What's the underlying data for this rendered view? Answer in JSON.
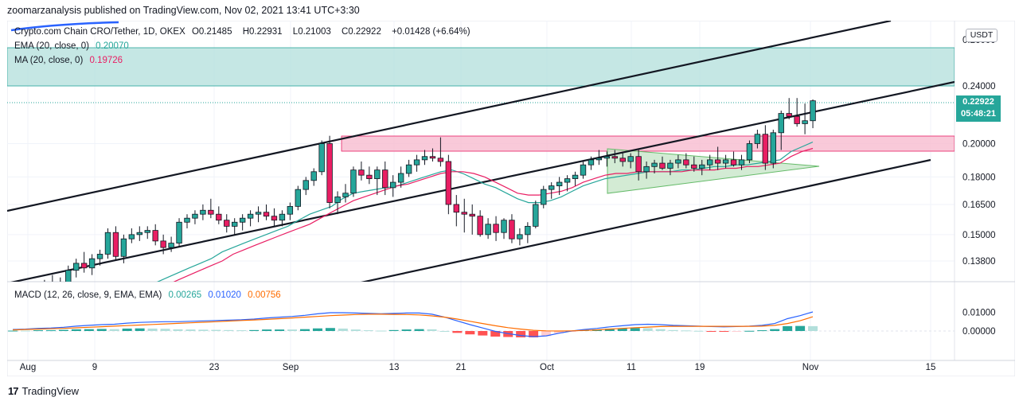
{
  "publisher": "zoomarzanalysis published on TradingView.com, Nov 02, 2021 13:41 UTC+3:30",
  "legend": {
    "symbol": "Crypto.com Chain CRO/Tether, 1D, OKEX",
    "o_label": "O",
    "open": "0.21485",
    "h_label": "H",
    "high": "0.22931",
    "l_label": "L",
    "low": "0.21003",
    "c_label": "C",
    "close": "0.22922",
    "change": "+0.01428 (+6.64%)",
    "ema_label": "EMA (20, close, 0)",
    "ema_value": "0.20070",
    "ma_label": "MA (20, close, 0)",
    "ma_value": "0.19726",
    "macd_label": "MACD (12, 26, close, 9, EMA, EMA)",
    "macd_hist": "0.00265",
    "macd_line": "0.01020",
    "macd_signal": "0.00756"
  },
  "currency_button": "USDT",
  "price_tag": {
    "price": "0.22922",
    "countdown": "05:48:21"
  },
  "footer": {
    "brand": "TradingView",
    "logo_text": "17"
  },
  "colors": {
    "up": "#26a69a",
    "down": "#ef5350",
    "candle_up_fill": "#26a69a",
    "candle_down_fill": "#e91e63",
    "ema": "#26a69a",
    "ma": "#e91e63",
    "macd_line": "#2962ff",
    "signal_line": "#ff6d00",
    "resistance_zone": "#b2dfdb",
    "support_zone": "#f8bbd0",
    "triangle": "#a5d6a7"
  },
  "chart_data": {
    "type": "candlestick",
    "x_ticks": [
      "Aug",
      "9",
      "23",
      "Sep",
      "13",
      "21",
      "Oct",
      "11",
      "19",
      "Nov",
      "15"
    ],
    "y_ticks": [
      "0.24000",
      "0.20000",
      "0.18000",
      "0.16500",
      "0.15000",
      "0.13800"
    ],
    "y_clipped_top": "0.26000",
    "macd_y_ticks": [
      "0.01000",
      "0.00000"
    ],
    "ohlc": [
      [
        0.121,
        0.125,
        0.118,
        0.123
      ],
      [
        0.123,
        0.128,
        0.12,
        0.126
      ],
      [
        0.126,
        0.13,
        0.123,
        0.128
      ],
      [
        0.128,
        0.132,
        0.124,
        0.125
      ],
      [
        0.125,
        0.131,
        0.122,
        0.129
      ],
      [
        0.129,
        0.136,
        0.127,
        0.134
      ],
      [
        0.134,
        0.139,
        0.131,
        0.137
      ],
      [
        0.137,
        0.142,
        0.133,
        0.135
      ],
      [
        0.135,
        0.141,
        0.132,
        0.139
      ],
      [
        0.139,
        0.143,
        0.136,
        0.141
      ],
      [
        0.141,
        0.153,
        0.139,
        0.151
      ],
      [
        0.151,
        0.154,
        0.138,
        0.14
      ],
      [
        0.14,
        0.15,
        0.137,
        0.148
      ],
      [
        0.148,
        0.153,
        0.146,
        0.15
      ],
      [
        0.15,
        0.154,
        0.147,
        0.151
      ],
      [
        0.151,
        0.154,
        0.148,
        0.152
      ],
      [
        0.152,
        0.155,
        0.145,
        0.147
      ],
      [
        0.147,
        0.15,
        0.141,
        0.144
      ],
      [
        0.144,
        0.149,
        0.142,
        0.146
      ],
      [
        0.146,
        0.158,
        0.144,
        0.156
      ],
      [
        0.156,
        0.16,
        0.153,
        0.158
      ],
      [
        0.158,
        0.162,
        0.155,
        0.16
      ],
      [
        0.16,
        0.165,
        0.157,
        0.162
      ],
      [
        0.162,
        0.168,
        0.158,
        0.16
      ],
      [
        0.16,
        0.164,
        0.155,
        0.157
      ],
      [
        0.157,
        0.16,
        0.151,
        0.154
      ],
      [
        0.154,
        0.158,
        0.15,
        0.156
      ],
      [
        0.156,
        0.16,
        0.152,
        0.158
      ],
      [
        0.158,
        0.162,
        0.154,
        0.16
      ],
      [
        0.16,
        0.164,
        0.156,
        0.161
      ],
      [
        0.161,
        0.165,
        0.157,
        0.159
      ],
      [
        0.159,
        0.163,
        0.154,
        0.157
      ],
      [
        0.157,
        0.162,
        0.154,
        0.16
      ],
      [
        0.16,
        0.166,
        0.157,
        0.164
      ],
      [
        0.164,
        0.175,
        0.162,
        0.173
      ],
      [
        0.173,
        0.18,
        0.17,
        0.178
      ],
      [
        0.178,
        0.185,
        0.175,
        0.183
      ],
      [
        0.183,
        0.202,
        0.181,
        0.2
      ],
      [
        0.2,
        0.205,
        0.163,
        0.166
      ],
      [
        0.166,
        0.172,
        0.16,
        0.169
      ],
      [
        0.169,
        0.176,
        0.166,
        0.171
      ],
      [
        0.171,
        0.186,
        0.169,
        0.184
      ],
      [
        0.184,
        0.189,
        0.178,
        0.181
      ],
      [
        0.181,
        0.186,
        0.176,
        0.179
      ],
      [
        0.179,
        0.186,
        0.17,
        0.184
      ],
      [
        0.184,
        0.189,
        0.17,
        0.174
      ],
      [
        0.174,
        0.181,
        0.169,
        0.177
      ],
      [
        0.177,
        0.186,
        0.174,
        0.182
      ],
      [
        0.182,
        0.19,
        0.18,
        0.187
      ],
      [
        0.187,
        0.193,
        0.183,
        0.19
      ],
      [
        0.19,
        0.196,
        0.187,
        0.192
      ],
      [
        0.192,
        0.197,
        0.189,
        0.191
      ],
      [
        0.191,
        0.204,
        0.186,
        0.189
      ],
      [
        0.189,
        0.193,
        0.16,
        0.165
      ],
      [
        0.165,
        0.17,
        0.154,
        0.161
      ],
      [
        0.161,
        0.168,
        0.151,
        0.16
      ],
      [
        0.16,
        0.165,
        0.15,
        0.159
      ],
      [
        0.159,
        0.162,
        0.149,
        0.15
      ],
      [
        0.15,
        0.158,
        0.148,
        0.155
      ],
      [
        0.155,
        0.159,
        0.147,
        0.151
      ],
      [
        0.151,
        0.158,
        0.148,
        0.157
      ],
      [
        0.157,
        0.16,
        0.146,
        0.148
      ],
      [
        0.148,
        0.153,
        0.145,
        0.15
      ],
      [
        0.15,
        0.156,
        0.146,
        0.154
      ],
      [
        0.154,
        0.167,
        0.153,
        0.165
      ],
      [
        0.165,
        0.175,
        0.163,
        0.173
      ],
      [
        0.173,
        0.177,
        0.168,
        0.175
      ],
      [
        0.175,
        0.18,
        0.17,
        0.177
      ],
      [
        0.177,
        0.181,
        0.172,
        0.179
      ],
      [
        0.179,
        0.183,
        0.175,
        0.181
      ],
      [
        0.181,
        0.189,
        0.179,
        0.187
      ],
      [
        0.187,
        0.192,
        0.184,
        0.19
      ],
      [
        0.19,
        0.196,
        0.187,
        0.191
      ],
      [
        0.191,
        0.195,
        0.186,
        0.192
      ],
      [
        0.192,
        0.196,
        0.188,
        0.191
      ],
      [
        0.191,
        0.195,
        0.186,
        0.189
      ],
      [
        0.189,
        0.194,
        0.185,
        0.192
      ],
      [
        0.192,
        0.196,
        0.178,
        0.183
      ],
      [
        0.183,
        0.189,
        0.179,
        0.186
      ],
      [
        0.186,
        0.19,
        0.182,
        0.188
      ],
      [
        0.188,
        0.192,
        0.184,
        0.185
      ],
      [
        0.185,
        0.19,
        0.181,
        0.188
      ],
      [
        0.188,
        0.193,
        0.185,
        0.19
      ],
      [
        0.19,
        0.194,
        0.185,
        0.187
      ],
      [
        0.187,
        0.192,
        0.183,
        0.185
      ],
      [
        0.185,
        0.19,
        0.181,
        0.187
      ],
      [
        0.187,
        0.193,
        0.184,
        0.19
      ],
      [
        0.19,
        0.198,
        0.184,
        0.188
      ],
      [
        0.188,
        0.193,
        0.185,
        0.19
      ],
      [
        0.19,
        0.195,
        0.186,
        0.187
      ],
      [
        0.187,
        0.193,
        0.184,
        0.19
      ],
      [
        0.19,
        0.202,
        0.188,
        0.2
      ],
      [
        0.2,
        0.209,
        0.197,
        0.206
      ],
      [
        0.206,
        0.212,
        0.184,
        0.188
      ],
      [
        0.188,
        0.209,
        0.185,
        0.207
      ],
      [
        0.207,
        0.222,
        0.196,
        0.22
      ],
      [
        0.22,
        0.231,
        0.216,
        0.218
      ],
      [
        0.218,
        0.231,
        0.211,
        0.213
      ],
      [
        0.213,
        0.227,
        0.206,
        0.215
      ],
      [
        0.215,
        0.23,
        0.21,
        0.229
      ]
    ],
    "ema": [
      0.125,
      0.124,
      0.127,
      0.129,
      0.131,
      0.133,
      0.135,
      0.137,
      0.139,
      0.142,
      0.144,
      0.146,
      0.148,
      0.15,
      0.152,
      0.154,
      0.157,
      0.16,
      0.162,
      0.164,
      0.168,
      0.171,
      0.172,
      0.173,
      0.174,
      0.175,
      0.177,
      0.179,
      0.181,
      0.183,
      0.184,
      0.182,
      0.179,
      0.176,
      0.174,
      0.171,
      0.168,
      0.166,
      0.166,
      0.167,
      0.169,
      0.172,
      0.175,
      0.177,
      0.179,
      0.18,
      0.181,
      0.182,
      0.183,
      0.183,
      0.183,
      0.184,
      0.184,
      0.185,
      0.186,
      0.186,
      0.187,
      0.187,
      0.188,
      0.189,
      0.19,
      0.195,
      0.198,
      0.201
    ],
    "ma": [
      0.12,
      0.122,
      0.124,
      0.126,
      0.128,
      0.13,
      0.132,
      0.134,
      0.136,
      0.138,
      0.141,
      0.143,
      0.145,
      0.147,
      0.149,
      0.151,
      0.153,
      0.155,
      0.158,
      0.161,
      0.164,
      0.167,
      0.169,
      0.171,
      0.173,
      0.175,
      0.176,
      0.178,
      0.18,
      0.182,
      0.183,
      0.183,
      0.182,
      0.18,
      0.177,
      0.174,
      0.171,
      0.17,
      0.17,
      0.171,
      0.172,
      0.174,
      0.177,
      0.179,
      0.181,
      0.182,
      0.182,
      0.183,
      0.183,
      0.183,
      0.183,
      0.183,
      0.184,
      0.184,
      0.184,
      0.185,
      0.185,
      0.186,
      0.186,
      0.187,
      0.188,
      0.192,
      0.195,
      0.197
    ],
    "macd": [
      0.0008,
      0.001,
      0.0014,
      0.0016,
      0.002,
      0.0026,
      0.003,
      0.0034,
      0.0036,
      0.0042,
      0.0046,
      0.0048,
      0.005,
      0.005,
      0.0052,
      0.0054,
      0.0056,
      0.0058,
      0.006,
      0.0064,
      0.007,
      0.0074,
      0.0078,
      0.0084,
      0.0092,
      0.0098,
      0.0098,
      0.0096,
      0.0094,
      0.0092,
      0.0094,
      0.0096,
      0.0096,
      0.009,
      0.0074,
      0.0054,
      0.0034,
      0.0016,
      -0.0002,
      -0.0014,
      -0.0024,
      -0.003,
      -0.0026,
      -0.0012,
      0.0,
      0.0008,
      0.0014,
      0.0022,
      0.0028,
      0.0034,
      0.0036,
      0.0034,
      0.003,
      0.0028,
      0.0026,
      0.0024,
      0.0022,
      0.0024,
      0.0026,
      0.003,
      0.004,
      0.0066,
      0.0082,
      0.0102
    ],
    "signal": [
      0.0006,
      0.0008,
      0.001,
      0.0012,
      0.0014,
      0.0017,
      0.002,
      0.0023,
      0.0026,
      0.0029,
      0.0032,
      0.0035,
      0.0038,
      0.0041,
      0.0044,
      0.0047,
      0.005,
      0.0053,
      0.0056,
      0.0059,
      0.0062,
      0.0066,
      0.007,
      0.0074,
      0.0078,
      0.0082,
      0.0085,
      0.0088,
      0.009,
      0.009,
      0.0089,
      0.0088,
      0.0086,
      0.0081,
      0.0074,
      0.0064,
      0.0052,
      0.004,
      0.0028,
      0.0018,
      0.001,
      0.0004,
      0.0001,
      0.0,
      0.0001,
      0.0003,
      0.0006,
      0.001,
      0.0014,
      0.0018,
      0.0021,
      0.0024,
      0.0025,
      0.0025,
      0.0025,
      0.0025,
      0.0025,
      0.0025,
      0.0025,
      0.0026,
      0.003,
      0.004,
      0.0055,
      0.0076
    ]
  }
}
